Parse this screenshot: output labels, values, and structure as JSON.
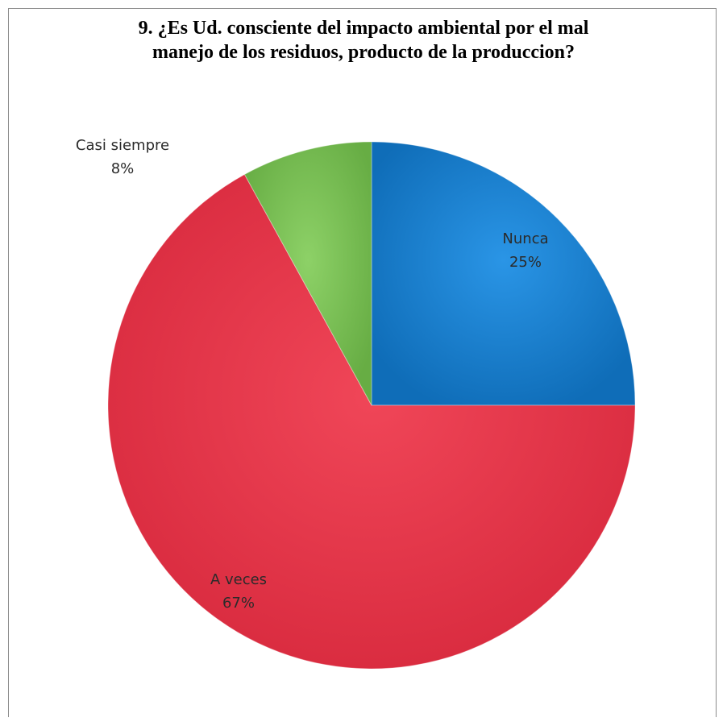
{
  "chart_data": {
    "type": "pie",
    "title_lines": [
      "9. ¿Es Ud. consciente del impacto ambiental por el mal",
      "manejo de los residuos, producto de la produccion?"
    ],
    "slices": [
      {
        "label": "Nunca",
        "value": 25,
        "pct_label": "25%",
        "color": "#1a7fd0"
      },
      {
        "label": "A veces",
        "value": 67,
        "pct_label": "67%",
        "color": "#ec3649"
      },
      {
        "label": "Casi siempre",
        "value": 8,
        "pct_label": "8%",
        "color": "#7cc256"
      }
    ],
    "legend": "none",
    "data_labels": "category-name-and-percent"
  }
}
